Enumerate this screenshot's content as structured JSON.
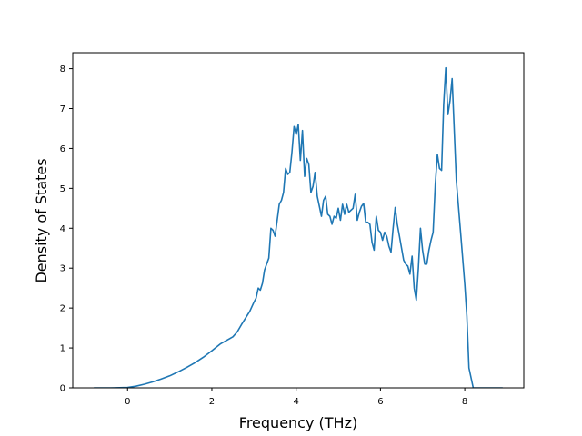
{
  "chart_data": {
    "type": "line",
    "title": "",
    "xlabel": "Frequency (THz)",
    "ylabel": "Density of States",
    "xlim": [
      -1.3,
      9.4
    ],
    "ylim": [
      0,
      8.4
    ],
    "x_ticks": [
      0,
      2,
      4,
      6,
      8
    ],
    "y_ticks": [
      0,
      1,
      2,
      3,
      4,
      5,
      6,
      7,
      8
    ],
    "grid": false,
    "legend": "none",
    "line_color": "#1f77b4",
    "series": [
      {
        "x": [
          -0.8,
          -0.4,
          0.0,
          0.2,
          0.4,
          0.6,
          0.8,
          1.0,
          1.2,
          1.4,
          1.6,
          1.8,
          2.0,
          2.2,
          2.4,
          2.5,
          2.6,
          2.7,
          2.8,
          2.9,
          3.0,
          3.05,
          3.1,
          3.15,
          3.2,
          3.25,
          3.3,
          3.35,
          3.4,
          3.45,
          3.5,
          3.55,
          3.6,
          3.65,
          3.7,
          3.75,
          3.8,
          3.85,
          3.9,
          3.95,
          4.0,
          4.05,
          4.1,
          4.15,
          4.2,
          4.25,
          4.3,
          4.35,
          4.4,
          4.45,
          4.5,
          4.55,
          4.6,
          4.65,
          4.7,
          4.75,
          4.8,
          4.85,
          4.9,
          4.95,
          5.0,
          5.05,
          5.1,
          5.15,
          5.2,
          5.25,
          5.3,
          5.35,
          5.4,
          5.45,
          5.5,
          5.55,
          5.6,
          5.65,
          5.7,
          5.75,
          5.8,
          5.85,
          5.9,
          5.95,
          6.0,
          6.05,
          6.1,
          6.15,
          6.2,
          6.25,
          6.3,
          6.35,
          6.4,
          6.45,
          6.5,
          6.55,
          6.6,
          6.65,
          6.7,
          6.75,
          6.8,
          6.85,
          6.9,
          6.95,
          7.0,
          7.05,
          7.1,
          7.15,
          7.2,
          7.25,
          7.3,
          7.35,
          7.4,
          7.45,
          7.5,
          7.55,
          7.6,
          7.65,
          7.7,
          7.8,
          7.9,
          8.0,
          8.05,
          8.1,
          8.2,
          8.5,
          8.9
        ],
        "y": [
          0,
          0,
          0.01,
          0.04,
          0.09,
          0.15,
          0.22,
          0.3,
          0.4,
          0.51,
          0.63,
          0.77,
          0.93,
          1.1,
          1.22,
          1.28,
          1.4,
          1.58,
          1.75,
          1.92,
          2.15,
          2.25,
          2.5,
          2.45,
          2.62,
          2.95,
          3.1,
          3.25,
          4.0,
          3.95,
          3.8,
          4.2,
          4.6,
          4.7,
          4.9,
          5.5,
          5.35,
          5.4,
          5.9,
          6.55,
          6.35,
          6.6,
          5.7,
          6.45,
          5.3,
          5.75,
          5.6,
          4.9,
          5.05,
          5.4,
          4.8,
          4.55,
          4.3,
          4.7,
          4.8,
          4.35,
          4.3,
          4.1,
          4.3,
          4.25,
          4.5,
          4.2,
          4.6,
          4.35,
          4.6,
          4.4,
          4.45,
          4.5,
          4.85,
          4.2,
          4.4,
          4.55,
          4.62,
          4.15,
          4.15,
          4.1,
          3.65,
          3.45,
          4.3,
          3.95,
          3.9,
          3.7,
          3.9,
          3.8,
          3.55,
          3.4,
          4.0,
          4.52,
          4.1,
          3.8,
          3.5,
          3.2,
          3.1,
          3.05,
          2.85,
          3.3,
          2.5,
          2.2,
          3.0,
          4.0,
          3.45,
          3.1,
          3.1,
          3.45,
          3.7,
          3.9,
          5.1,
          5.85,
          5.5,
          5.45,
          7.1,
          8.02,
          6.85,
          7.2,
          7.75,
          5.2,
          3.9,
          2.6,
          1.8,
          0.5,
          0,
          0,
          0
        ]
      }
    ]
  }
}
